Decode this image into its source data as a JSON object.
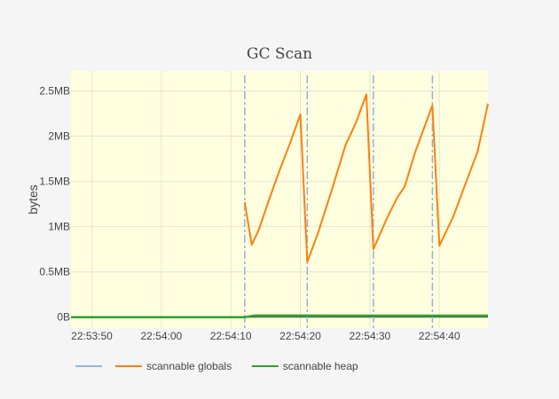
{
  "chart_data": {
    "type": "line",
    "title": "GC Scan",
    "xlabel": "",
    "ylabel": "bytes",
    "x_range": [
      "22:53:47",
      "22:54:47"
    ],
    "y_range_bytes": [
      -120000,
      2720000
    ],
    "grid": true,
    "legend_position": "bottom",
    "plot_background": "#ffffe0",
    "page_background": "#f5f5f5",
    "x_ticks": [
      {
        "value": "22:53:50",
        "label": "22:53:50"
      },
      {
        "value": "22:54:00",
        "label": "22:54:00"
      },
      {
        "value": "22:54:10",
        "label": "22:54:10"
      },
      {
        "value": "22:54:20",
        "label": "22:54:20"
      },
      {
        "value": "22:54:30",
        "label": "22:54:30"
      },
      {
        "value": "22:54:40",
        "label": "22:54:40"
      }
    ],
    "y_ticks": [
      {
        "value": 0,
        "label": "0B"
      },
      {
        "value": 500000,
        "label": "0.5MB"
      },
      {
        "value": 1000000,
        "label": "1MB"
      },
      {
        "value": 1500000,
        "label": "1.5MB"
      },
      {
        "value": 2000000,
        "label": "2MB"
      },
      {
        "value": 2500000,
        "label": "2.5MB"
      }
    ],
    "series": [
      {
        "name": "",
        "color": "#8fb5dc",
        "style": "dashdot-vertical",
        "marks": [
          "22:54:12",
          "22:54:21",
          "22:54:30.5",
          "22:54:39"
        ]
      },
      {
        "name": "scannable globals",
        "color": "#ff7f0e",
        "style": "solid",
        "points": [
          [
            "22:54:12",
            1270000
          ],
          [
            "22:54:13",
            800000
          ],
          [
            "22:54:14",
            960000
          ],
          [
            "22:54:15.5",
            1300000
          ],
          [
            "22:54:17",
            1620000
          ],
          [
            "22:54:18.5",
            1920000
          ],
          [
            "22:54:20",
            2240000
          ],
          [
            "22:54:21",
            610000
          ],
          [
            "22:54:22.5",
            920000
          ],
          [
            "22:54:24.5",
            1400000
          ],
          [
            "22:54:26.5",
            1900000
          ],
          [
            "22:54:28",
            2150000
          ],
          [
            "22:54:29.5",
            2460000
          ],
          [
            "22:54:30.5",
            750000
          ],
          [
            "22:54:32.5",
            1100000
          ],
          [
            "22:54:34",
            1330000
          ],
          [
            "22:54:35",
            1440000
          ],
          [
            "22:54:36.5",
            1820000
          ],
          [
            "22:54:39",
            2340000
          ],
          [
            "22:54:40",
            790000
          ],
          [
            "22:54:42",
            1110000
          ],
          [
            "22:54:43.5",
            1420000
          ],
          [
            "22:54:45.5",
            1830000
          ],
          [
            "22:54:47",
            2360000
          ]
        ]
      },
      {
        "name": "scannable heap",
        "color": "#2ca02c",
        "style": "solid",
        "points": [
          [
            "22:53:47",
            0
          ],
          [
            "22:54:12",
            0
          ],
          [
            "22:54:13.5",
            18000
          ],
          [
            "22:54:20",
            18000
          ],
          [
            "22:54:30",
            17000
          ],
          [
            "22:54:40",
            17000
          ],
          [
            "22:54:47",
            17000
          ]
        ]
      }
    ],
    "legend": [
      {
        "label": "",
        "color": "#8fb5dc"
      },
      {
        "label": "scannable globals",
        "color": "#ff7f0e"
      },
      {
        "label": "scannable heap",
        "color": "#2ca02c"
      }
    ]
  }
}
